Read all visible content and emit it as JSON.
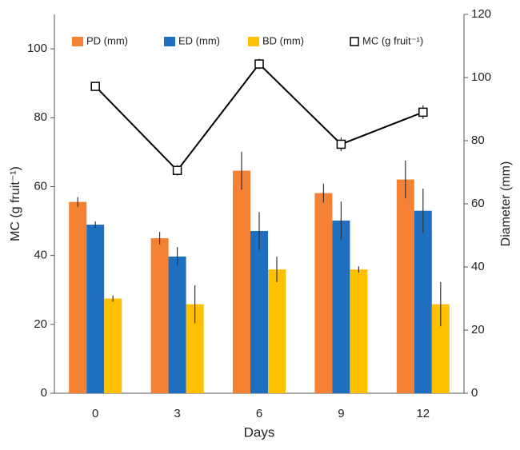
{
  "chart_data": {
    "type": "bar",
    "x_label": "Days",
    "y_label": "MC (g fruit⁻¹)",
    "y2_label": "Diameter (mm)",
    "categories": [
      "0",
      "3",
      "6",
      "9",
      "12"
    ],
    "ylim": [
      0,
      110
    ],
    "yticks": [
      0,
      20,
      40,
      60,
      80,
      100
    ],
    "y2lim": [
      0,
      120
    ],
    "y2ticks": [
      0,
      20,
      40,
      60,
      80,
      100,
      120
    ],
    "series": [
      {
        "name": "PD (mm)",
        "color": "#f58233",
        "axis": "y2",
        "values": [
          60.6,
          49.1,
          70.5,
          63.4,
          67.7
        ],
        "errors": [
          1.5,
          2,
          6,
          3,
          6
        ]
      },
      {
        "name": "ED (mm)",
        "color": "#1f6fc0",
        "axis": "y2",
        "values": [
          53.4,
          43.3,
          51.4,
          54.7,
          57.8
        ],
        "errors": [
          1,
          3,
          6,
          6,
          7
        ]
      },
      {
        "name": "BD (mm)",
        "color": "#ffc000",
        "axis": "y2",
        "values": [
          30.0,
          28.2,
          39.2,
          39.2,
          28.2
        ],
        "errors": [
          1,
          6,
          4,
          1,
          7
        ]
      },
      {
        "name": "MC (g fruit⁻¹)",
        "color": "#000000",
        "axis": "y",
        "type": "line",
        "values": [
          89.1,
          64.7,
          95.6,
          72.3,
          81.6
        ],
        "errors": [
          1,
          1.5,
          1.5,
          2,
          2
        ]
      }
    ]
  }
}
